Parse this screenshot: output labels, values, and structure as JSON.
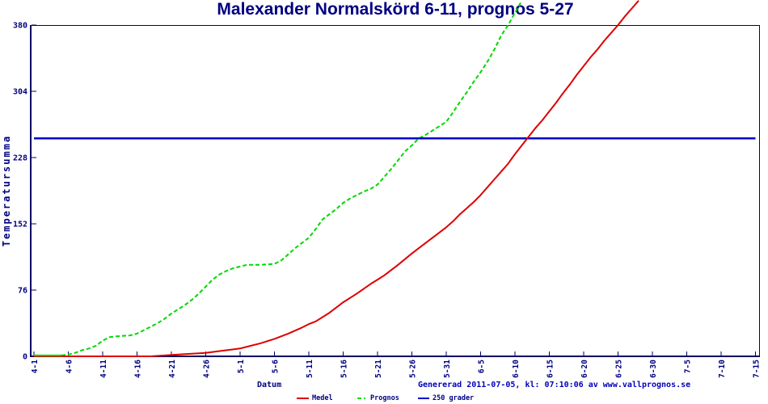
{
  "footer": "Genererad 2011-07-05, kl: 07:10:06 av www.vallprognos.se",
  "colors": {
    "title_text": "#000080",
    "axis_line": "#000066",
    "tick_text": "#000080",
    "footer_text": "#0000bb",
    "medel": "#dd0000",
    "prognos": "#00d800",
    "threshold": "#0000cc"
  },
  "chart_data": {
    "type": "line",
    "title": "Malexander Normalskörd 6-11, prognos 5-27",
    "xlabel": "Datum",
    "ylabel": "Temperatursumma",
    "x_ticks": [
      "4-1",
      "4-6",
      "4-11",
      "4-16",
      "4-21",
      "4-26",
      "5-1",
      "5-6",
      "5-11",
      "5-16",
      "5-21",
      "5-26",
      "5-31",
      "6-5",
      "6-10",
      "6-15",
      "6-20",
      "6-25",
      "6-30",
      "7-5",
      "7-10",
      "7-15"
    ],
    "y_ticks": [
      0,
      76,
      152,
      228,
      304,
      380
    ],
    "ylim": [
      0,
      380
    ],
    "xlim": [
      "4-1",
      "7-15"
    ],
    "grid": false,
    "legend_position": "bottom",
    "series": [
      {
        "name": "Medel",
        "color": "#dd0000",
        "style": "solid",
        "points": [
          [
            "4-1",
            0
          ],
          [
            "4-18",
            0
          ],
          [
            "4-20",
            1
          ],
          [
            "4-22",
            2
          ],
          [
            "4-24",
            3
          ],
          [
            "4-26",
            4
          ],
          [
            "4-28",
            6
          ],
          [
            "4-30",
            8
          ],
          [
            "5-1",
            9
          ],
          [
            "5-2",
            11
          ],
          [
            "5-4",
            15
          ],
          [
            "5-6",
            20
          ],
          [
            "5-8",
            26
          ],
          [
            "5-10",
            33
          ],
          [
            "5-11",
            37
          ],
          [
            "5-12",
            40
          ],
          [
            "5-14",
            50
          ],
          [
            "5-16",
            62
          ],
          [
            "5-18",
            72
          ],
          [
            "5-20",
            83
          ],
          [
            "5-21",
            88
          ],
          [
            "5-22",
            93
          ],
          [
            "5-24",
            105
          ],
          [
            "5-26",
            118
          ],
          [
            "5-28",
            130
          ],
          [
            "5-30",
            142
          ],
          [
            "5-31",
            148
          ],
          [
            "6-1",
            155
          ],
          [
            "6-2",
            163
          ],
          [
            "6-3",
            170
          ],
          [
            "6-4",
            177
          ],
          [
            "6-5",
            185
          ],
          [
            "6-6",
            194
          ],
          [
            "6-7",
            203
          ],
          [
            "6-8",
            212
          ],
          [
            "6-9",
            221
          ],
          [
            "6-10",
            232
          ],
          [
            "6-11",
            242
          ],
          [
            "6-12",
            252
          ],
          [
            "6-13",
            262
          ],
          [
            "6-14",
            271
          ],
          [
            "6-15",
            281
          ],
          [
            "6-16",
            291
          ],
          [
            "6-17",
            302
          ],
          [
            "6-18",
            312
          ],
          [
            "6-19",
            323
          ],
          [
            "6-20",
            333
          ],
          [
            "6-21",
            343
          ],
          [
            "6-22",
            352
          ],
          [
            "6-23",
            362
          ],
          [
            "6-24",
            371
          ],
          [
            "6-25",
            380
          ],
          [
            "6-26",
            390
          ],
          [
            "6-27",
            399
          ],
          [
            "6-28",
            408
          ]
        ]
      },
      {
        "name": "Prognos",
        "color": "#00d800",
        "style": "dashed",
        "solid_until": "4-5",
        "points": [
          [
            "4-1",
            1
          ],
          [
            "4-5",
            1
          ],
          [
            "4-6",
            2
          ],
          [
            "4-7",
            4
          ],
          [
            "4-8",
            7
          ],
          [
            "4-9",
            9
          ],
          [
            "4-10",
            12
          ],
          [
            "4-11",
            18
          ],
          [
            "4-12",
            22
          ],
          [
            "4-13",
            23
          ],
          [
            "4-15",
            24
          ],
          [
            "4-16",
            26
          ],
          [
            "4-17",
            30
          ],
          [
            "4-18",
            34
          ],
          [
            "4-19",
            38
          ],
          [
            "4-20",
            43
          ],
          [
            "4-21",
            49
          ],
          [
            "4-22",
            54
          ],
          [
            "4-23",
            59
          ],
          [
            "4-24",
            65
          ],
          [
            "4-25",
            72
          ],
          [
            "4-26",
            80
          ],
          [
            "4-27",
            88
          ],
          [
            "4-28",
            94
          ],
          [
            "4-29",
            98
          ],
          [
            "4-30",
            101
          ],
          [
            "5-1",
            103
          ],
          [
            "5-2",
            105
          ],
          [
            "5-4",
            105
          ],
          [
            "5-6",
            106
          ],
          [
            "5-7",
            110
          ],
          [
            "5-8",
            117
          ],
          [
            "5-9",
            124
          ],
          [
            "5-10",
            130
          ],
          [
            "5-11",
            136
          ],
          [
            "5-12",
            146
          ],
          [
            "5-13",
            157
          ],
          [
            "5-14",
            163
          ],
          [
            "5-15",
            169
          ],
          [
            "5-16",
            176
          ],
          [
            "5-17",
            181
          ],
          [
            "5-18",
            185
          ],
          [
            "5-19",
            189
          ],
          [
            "5-20",
            192
          ],
          [
            "5-21",
            197
          ],
          [
            "5-22",
            206
          ],
          [
            "5-23",
            215
          ],
          [
            "5-24",
            225
          ],
          [
            "5-25",
            235
          ],
          [
            "5-26",
            242
          ],
          [
            "5-27",
            250
          ],
          [
            "5-28",
            254
          ],
          [
            "5-29",
            259
          ],
          [
            "5-30",
            264
          ],
          [
            "5-31",
            269
          ],
          [
            "6-1",
            280
          ],
          [
            "6-2",
            292
          ],
          [
            "6-3",
            303
          ],
          [
            "6-4",
            315
          ],
          [
            "6-5",
            326
          ],
          [
            "6-6",
            338
          ],
          [
            "6-7",
            352
          ],
          [
            "6-8",
            368
          ],
          [
            "6-9",
            380
          ],
          [
            "6-10",
            394
          ],
          [
            "6-11",
            408
          ]
        ]
      },
      {
        "name": "250 grader",
        "color": "#0000cc",
        "style": "solid",
        "points": [
          [
            "4-1",
            250
          ],
          [
            "7-15",
            250
          ]
        ]
      }
    ]
  }
}
